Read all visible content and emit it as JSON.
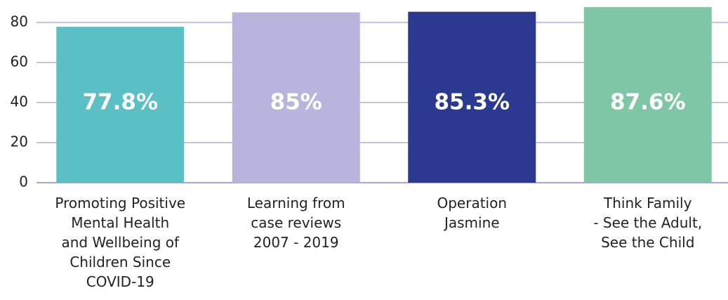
{
  "chart_data": {
    "type": "bar",
    "categories": [
      "Promoting Positive\nMental Health\nand Wellbeing of\nChildren Since\nCOVID-19",
      "Learning from\ncase reviews\n2007 - 2019",
      "Operation\nJasmine",
      "Think Family\n- See the Adult,\nSee the Child"
    ],
    "values": [
      77.8,
      85,
      85.3,
      87.6
    ],
    "value_labels": [
      "77.8%",
      "85%",
      "85.3%",
      "87.6%"
    ],
    "colors": [
      "#5bc0c3",
      "#b9b4dc",
      "#2b3990",
      "#7fc6a6"
    ],
    "ylim": [
      0,
      88
    ],
    "yticks": [
      0,
      20,
      40,
      60,
      80
    ],
    "grid": true
  }
}
